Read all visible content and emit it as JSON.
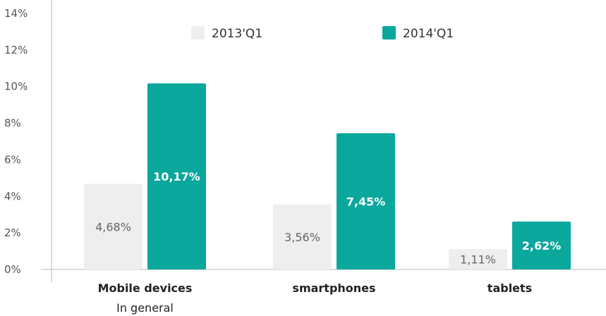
{
  "chart_data": {
    "type": "bar",
    "categories": [
      "Mobile devices",
      "smartphones",
      "tablets"
    ],
    "category_sublabels": [
      "In general",
      "",
      ""
    ],
    "series": [
      {
        "name": "2013'Q1",
        "values": [
          4.68,
          3.56,
          1.11
        ],
        "labels": [
          "4,68%",
          "3,56%",
          "1,11%"
        ],
        "color": "#eeeeee"
      },
      {
        "name": "2014'Q1",
        "values": [
          10.17,
          7.45,
          2.62
        ],
        "labels": [
          "10,17%",
          "7,45%",
          "2,62%"
        ],
        "color": "#0aa79d"
      }
    ],
    "y_ticks": [
      "0%",
      "2%",
      "4%",
      "6%",
      "8%",
      "10%",
      "12%",
      "14%"
    ],
    "ylim": [
      0,
      14
    ],
    "grid": false,
    "legend": "top-center"
  }
}
